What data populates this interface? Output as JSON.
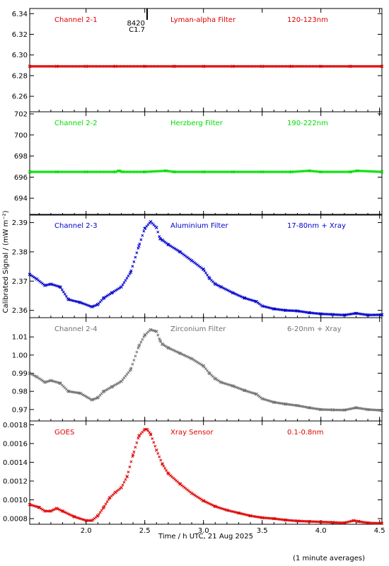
{
  "chart_data": [
    {
      "type": "scatter",
      "panel_labels": [
        "Channel 2-1",
        "Lyman-alpha Filter",
        "120-123nm"
      ],
      "color": "#dd0000",
      "ylim": [
        6.245,
        6.345
      ],
      "yticks": [
        6.26,
        6.28,
        6.3,
        6.32,
        6.34
      ],
      "ytick_labels": [
        "6.26",
        "6.28",
        "6.30",
        "6.32",
        "6.34"
      ],
      "series": [
        {
          "x": [
            1.52,
            1.75,
            2.0,
            2.25,
            2.5,
            2.75,
            3.0,
            3.25,
            3.5,
            3.75,
            4.0,
            4.25,
            4.52
          ],
          "values": [
            6.289,
            6.289,
            6.289,
            6.289,
            6.289,
            6.289,
            6.289,
            6.289,
            6.289,
            6.289,
            6.289,
            6.289,
            6.289
          ]
        }
      ],
      "annotation": {
        "x": 2.52,
        "lines": [
          "8420",
          "C1.7"
        ]
      }
    },
    {
      "type": "scatter",
      "panel_labels": [
        "Channel 2-2",
        "Herzberg Filter",
        "190-222nm"
      ],
      "color": "#00dd00",
      "ylim": [
        692.4,
        702.2
      ],
      "yticks": [
        694,
        696,
        698,
        700,
        702
      ],
      "ytick_labels": [
        "694",
        "696",
        "698",
        "700",
        "702"
      ],
      "series": [
        {
          "x": [
            1.52,
            1.75,
            2.0,
            2.25,
            2.28,
            2.31,
            2.5,
            2.68,
            2.75,
            3.0,
            3.25,
            3.5,
            3.75,
            3.9,
            4.0,
            4.25,
            4.31,
            4.52
          ],
          "values": [
            696.5,
            696.5,
            696.5,
            696.5,
            696.6,
            696.5,
            696.5,
            696.6,
            696.5,
            696.5,
            696.5,
            696.5,
            696.5,
            696.6,
            696.5,
            696.5,
            696.6,
            696.5
          ]
        }
      ]
    },
    {
      "type": "scatter",
      "panel_labels": [
        "Channel 2-3",
        "Aluminium Filter",
        "17-80nm + Xray"
      ],
      "color": "#0000cc",
      "ylim": [
        2.3575,
        2.3928
      ],
      "yticks": [
        2.36,
        2.37,
        2.38,
        2.39
      ],
      "ytick_labels": [
        "2.36",
        "2.37",
        "2.38",
        "2.39"
      ],
      "series": [
        {
          "x": [
            1.52,
            1.58,
            1.65,
            1.7,
            1.78,
            1.85,
            1.95,
            2.05,
            2.1,
            2.15,
            2.22,
            2.3,
            2.38,
            2.45,
            2.5,
            2.55,
            2.6,
            2.63,
            2.65,
            2.7,
            2.8,
            2.9,
            3.0,
            3.05,
            3.1,
            3.15,
            3.25,
            3.35,
            3.45,
            3.5,
            3.6,
            3.7,
            3.8,
            3.9,
            4.0,
            4.1,
            4.2,
            4.3,
            4.4,
            4.52
          ],
          "values": [
            2.3723,
            2.3707,
            2.3685,
            2.369,
            2.368,
            2.3637,
            2.3627,
            2.3612,
            2.362,
            2.3642,
            2.366,
            2.368,
            2.373,
            2.382,
            2.388,
            2.3903,
            2.3883,
            2.3845,
            2.384,
            2.3825,
            2.38,
            2.377,
            2.374,
            2.371,
            2.369,
            2.368,
            2.366,
            2.3642,
            2.363,
            2.3615,
            2.3605,
            2.36,
            2.3598,
            2.3592,
            2.3588,
            2.3586,
            2.3584,
            2.359,
            2.3584,
            2.3585
          ]
        }
      ]
    },
    {
      "type": "scatter",
      "panel_labels": [
        "Channel 2-4",
        "Zirconium Filter",
        "6-20nm + Xray"
      ],
      "color": "#707070",
      "ylim": [
        0.9637,
        1.0206
      ],
      "yticks": [
        0.97,
        0.98,
        0.99,
        1.0,
        1.01
      ],
      "ytick_labels": [
        "0.97",
        "0.98",
        "0.99",
        "1.00",
        "1.01"
      ],
      "series": [
        {
          "x": [
            1.52,
            1.58,
            1.65,
            1.7,
            1.78,
            1.85,
            1.95,
            2.05,
            2.1,
            2.15,
            2.22,
            2.3,
            2.38,
            2.45,
            2.5,
            2.55,
            2.6,
            2.63,
            2.65,
            2.7,
            2.8,
            2.9,
            3.0,
            3.05,
            3.1,
            3.15,
            3.25,
            3.35,
            3.45,
            3.5,
            3.6,
            3.7,
            3.8,
            3.9,
            4.0,
            4.1,
            4.2,
            4.3,
            4.4,
            4.52
          ],
          "values": [
            0.99,
            0.988,
            0.985,
            0.986,
            0.9845,
            0.98,
            0.979,
            0.9753,
            0.9765,
            0.98,
            0.9825,
            0.9855,
            0.992,
            1.005,
            1.011,
            1.014,
            1.013,
            1.008,
            1.006,
            1.004,
            1.001,
            0.998,
            0.994,
            0.99,
            0.987,
            0.985,
            0.983,
            0.9805,
            0.9785,
            0.976,
            0.974,
            0.973,
            0.9722,
            0.971,
            0.97,
            0.9698,
            0.9697,
            0.971,
            0.97,
            0.9695
          ]
        }
      ]
    },
    {
      "type": "scatter",
      "panel_labels": [
        "GOES",
        "Xray Sensor",
        "0.1-0.8nm"
      ],
      "color": "#dd0000",
      "ylim": [
        0.00074,
        0.00184
      ],
      "yticks": [
        0.0008,
        0.001,
        0.0012,
        0.0014,
        0.0016,
        0.0018
      ],
      "ytick_labels": [
        "0.0008",
        "0.0010",
        "0.0012",
        "0.0014",
        "0.0016",
        "0.0018"
      ],
      "series": [
        {
          "x": [
            1.52,
            1.6,
            1.65,
            1.7,
            1.75,
            1.8,
            1.9,
            2.0,
            2.05,
            2.1,
            2.15,
            2.2,
            2.25,
            2.3,
            2.35,
            2.4,
            2.45,
            2.5,
            2.52,
            2.55,
            2.6,
            2.65,
            2.7,
            2.8,
            2.9,
            3.0,
            3.1,
            3.2,
            3.3,
            3.4,
            3.5,
            3.6,
            3.7,
            3.8,
            3.9,
            4.0,
            4.1,
            4.2,
            4.28,
            4.32,
            4.4,
            4.52
          ],
          "values": [
            0.00095,
            0.00092,
            0.00088,
            0.00088,
            0.00091,
            0.00088,
            0.00082,
            0.00078,
            0.00078,
            0.00083,
            0.00092,
            0.00102,
            0.00108,
            0.00113,
            0.00125,
            0.00148,
            0.00168,
            0.00175,
            0.00175,
            0.0017,
            0.00153,
            0.00138,
            0.00128,
            0.00117,
            0.00107,
            0.00099,
            0.00093,
            0.00089,
            0.00086,
            0.00083,
            0.00081,
            0.0008,
            0.000785,
            0.000775,
            0.00077,
            0.000765,
            0.00076,
            0.000755,
            0.00078,
            0.00077,
            0.000755,
            0.00075
          ]
        }
      ]
    }
  ],
  "shared": {
    "xlim": [
      1.52,
      4.52
    ],
    "xticks": [
      2.0,
      2.5,
      3.0,
      3.5,
      4.0,
      4.5
    ],
    "xtick_labels": [
      "2.0",
      "2.5",
      "3.0",
      "3.5",
      "4.0",
      "4.5"
    ],
    "xlabel": "Time / h UTC, 21 Aug 2025",
    "ylabel": "Calibrated Signal / (mW m⁻²)",
    "footnote": "(1 minute averages)"
  }
}
